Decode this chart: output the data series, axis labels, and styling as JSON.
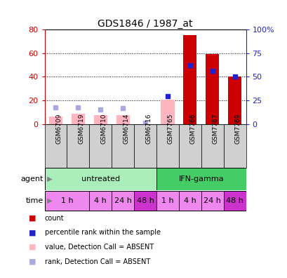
{
  "title": "GDS1846 / 1987_at",
  "samples": [
    "GSM6709",
    "GSM6719",
    "GSM6710",
    "GSM6714",
    "GSM6716",
    "GSM7765",
    "GSM7766",
    "GSM7767",
    "GSM7769"
  ],
  "bar_red_values": [
    0,
    0,
    0,
    0,
    0,
    0,
    75,
    59,
    40
  ],
  "bar_pink_values": [
    7,
    9,
    8,
    8,
    0,
    21,
    0,
    0,
    0
  ],
  "blue_square_vals": [
    18,
    18,
    16,
    17,
    2,
    30,
    62,
    56,
    50
  ],
  "detection_absent_blue": [
    true,
    true,
    true,
    true,
    true,
    false,
    false,
    false,
    false
  ],
  "agent_groups": [
    {
      "label": "untreated",
      "start": 0,
      "end": 4,
      "color": "#aaeebb"
    },
    {
      "label": "IFN-gamma",
      "start": 5,
      "end": 8,
      "color": "#44cc66"
    }
  ],
  "time_labels": [
    "1 h",
    "4 h",
    "24 h",
    "48 h",
    "1 h",
    "4 h",
    "24 h",
    "48 h"
  ],
  "time_colors": [
    "#ee88ee",
    "#ee88ee",
    "#ee88ee",
    "#cc33cc",
    "#ee88ee",
    "#ee88ee",
    "#ee88ee",
    "#cc33cc"
  ],
  "time_sample_map": [
    [
      0,
      1
    ],
    [
      2
    ],
    [
      3
    ],
    [
      4
    ],
    [
      5
    ],
    [
      6
    ],
    [
      7
    ],
    [
      8
    ]
  ],
  "ylim_left": [
    0,
    80
  ],
  "ylim_right": [
    0,
    100
  ],
  "yticks_left": [
    0,
    20,
    40,
    60,
    80
  ],
  "yticks_right": [
    0,
    25,
    50,
    75,
    100
  ],
  "yticklabels_right": [
    "0",
    "25",
    "50",
    "75",
    "100%"
  ],
  "color_red": "#cc0000",
  "color_pink": "#ffb6c1",
  "color_blue_dark": "#2222cc",
  "color_blue_light": "#aaaadd",
  "bar_width": 0.6,
  "sample_bg": "#d0d0d0"
}
